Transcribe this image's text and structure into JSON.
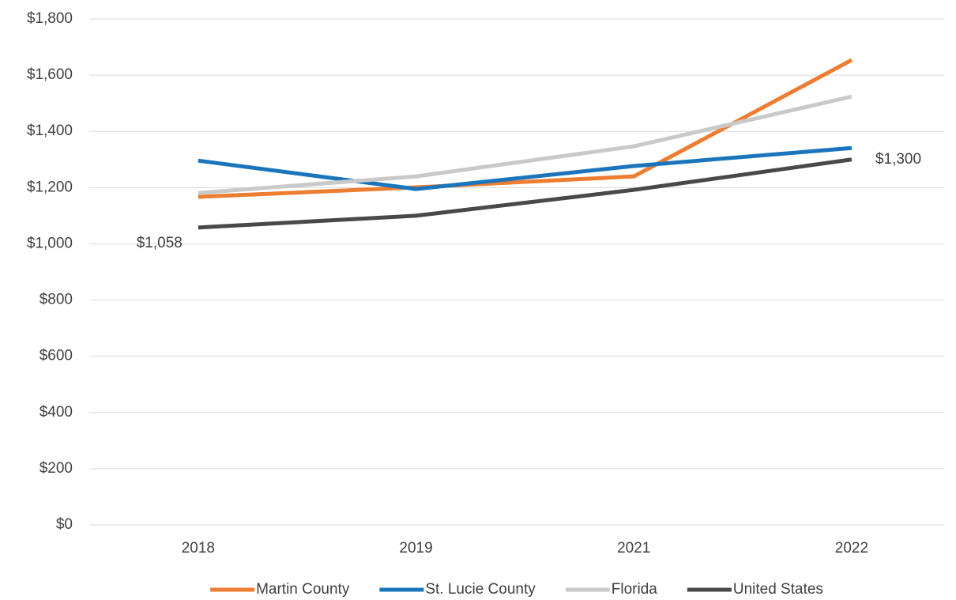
{
  "chart_data": {
    "type": "line",
    "categories": [
      "2018",
      "2019",
      "2021",
      "2022"
    ],
    "series": [
      {
        "name": "Martin County",
        "color": "#ed7d31",
        "values": [
          1167,
          1201,
          1240,
          1654
        ]
      },
      {
        "name": "St. Lucie County",
        "color": "#1a75bc",
        "values": [
          1296,
          1195,
          1277,
          1341
        ]
      },
      {
        "name": "Florida",
        "color": "#c9c9c9",
        "values": [
          1181,
          1240,
          1347,
          1524
        ]
      },
      {
        "name": "United States",
        "color": "#474a47",
        "values": [
          1058,
          1100,
          1192,
          1300
        ],
        "value_labels": [
          "$1,058",
          null,
          null,
          "$1,300"
        ]
      }
    ],
    "ylim": [
      0,
      1800
    ],
    "yticks": [
      {
        "value": 0,
        "label": "$0"
      },
      {
        "value": 200,
        "label": "$200"
      },
      {
        "value": 400,
        "label": "$400"
      },
      {
        "value": 600,
        "label": "$600"
      },
      {
        "value": 800,
        "label": "$800"
      },
      {
        "value": 1000,
        "label": "$1,000"
      },
      {
        "value": 1200,
        "label": "$1,200"
      },
      {
        "value": 1400,
        "label": "$1,400"
      },
      {
        "value": 1600,
        "label": "$1,600"
      },
      {
        "value": 1800,
        "label": "$1,800"
      }
    ],
    "grid": true,
    "legend": "bottom"
  }
}
